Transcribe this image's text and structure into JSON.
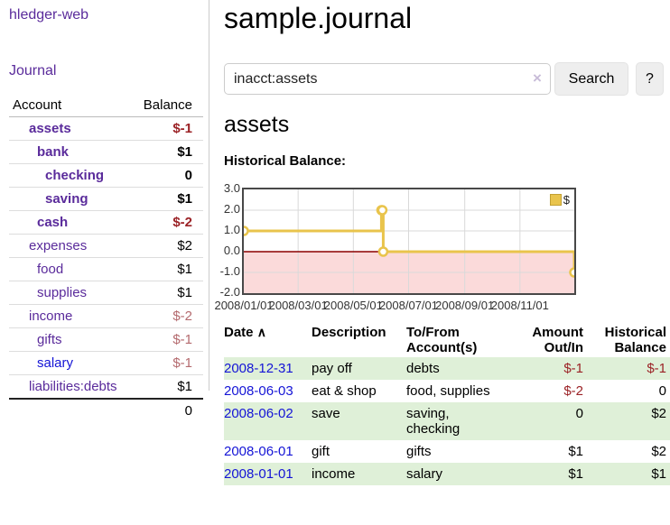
{
  "app": {
    "brand": "hledger-web"
  },
  "sidebar": {
    "journal_link": "Journal",
    "table": {
      "account_header": "Account",
      "balance_header": "Balance",
      "rows": [
        {
          "account": "assets",
          "balance": "$-1",
          "depth": 1,
          "bold": true,
          "neg": true,
          "unvisited": false
        },
        {
          "account": "bank",
          "balance": "$1",
          "depth": 2,
          "bold": true,
          "neg": false,
          "unvisited": false
        },
        {
          "account": "checking",
          "balance": "0",
          "depth": 3,
          "bold": true,
          "neg": false,
          "unvisited": false
        },
        {
          "account": "saving",
          "balance": "$1",
          "depth": 3,
          "bold": true,
          "neg": false,
          "unvisited": false
        },
        {
          "account": "cash",
          "balance": "$-2",
          "depth": 2,
          "bold": true,
          "neg": true,
          "unvisited": false
        },
        {
          "account": "expenses",
          "balance": "$2",
          "depth": 1,
          "bold": false,
          "neg": false,
          "unvisited": false
        },
        {
          "account": "food",
          "balance": "$1",
          "depth": 2,
          "bold": false,
          "neg": false,
          "unvisited": false
        },
        {
          "account": "supplies",
          "balance": "$1",
          "depth": 2,
          "bold": false,
          "neg": false,
          "unvisited": false
        },
        {
          "account": "income",
          "balance": "$-2",
          "depth": 1,
          "bold": false,
          "neg": true,
          "unvisited": false
        },
        {
          "account": "gifts",
          "balance": "$-1",
          "depth": 2,
          "bold": false,
          "neg": true,
          "unvisited": false
        },
        {
          "account": "salary",
          "balance": "$-1",
          "depth": 2,
          "bold": false,
          "neg": true,
          "unvisited": true
        },
        {
          "account": "liabilities:debts",
          "balance": "$1",
          "depth": 1,
          "bold": false,
          "neg": false,
          "unvisited": false
        }
      ],
      "total": "0"
    }
  },
  "main": {
    "title": "sample.journal",
    "search": {
      "value": "inacct:assets",
      "clear_icon": "×",
      "button_label": "Search",
      "help_label": "?"
    },
    "account_heading": "assets",
    "chart_label": "Historical Balance:"
  },
  "chart_data": {
    "type": "line",
    "title": "Historical Balance",
    "step": true,
    "legend": [
      {
        "label": "$",
        "color": "#e9c44c"
      }
    ],
    "legend_position": "top-right",
    "grid": true,
    "ylim": [
      -2.0,
      3.0
    ],
    "y_ticks": [
      "3.0",
      "2.0",
      "1.0",
      "0.0",
      "-1.0",
      "-2.0"
    ],
    "y_tick_values": [
      3,
      2,
      1,
      0,
      -1,
      -2
    ],
    "x_ticks": [
      {
        "label": "2008/01/01",
        "day": 0
      },
      {
        "label": "2008/03/01",
        "day": 60
      },
      {
        "label": "2008/05/01",
        "day": 121
      },
      {
        "label": "2008/07/01",
        "day": 182
      },
      {
        "label": "2008/09/01",
        "day": 244
      },
      {
        "label": "2008/11/01",
        "day": 305
      }
    ],
    "xlim_days": [
      0,
      365
    ],
    "series": [
      {
        "name": "$",
        "color": "#e9c44c",
        "points": [
          {
            "date": "2008-01-01",
            "day": 0,
            "value": 1
          },
          {
            "date": "2008-06-01",
            "day": 152,
            "value": 2
          },
          {
            "date": "2008-06-02",
            "day": 153,
            "value": 2
          },
          {
            "date": "2008-06-03",
            "day": 154,
            "value": 0
          },
          {
            "date": "2008-12-31",
            "day": 365,
            "value": -1
          }
        ]
      }
    ],
    "negative_region_color": "#fbdada",
    "zero_line_color": "#8b0000"
  },
  "register": {
    "headers": {
      "date": "Date",
      "sort_icon": "∧",
      "description": "Description",
      "accounts": "To/From Account(s)",
      "amount": "Amount Out/In",
      "balance": "Historical Balance"
    },
    "rows": [
      {
        "date": "2008-12-31",
        "description": "pay off",
        "accounts": "debts",
        "amount": "$-1",
        "balance": "$-1",
        "amount_neg": true,
        "balance_neg": true
      },
      {
        "date": "2008-06-03",
        "description": "eat & shop",
        "accounts": "food, supplies",
        "amount": "$-2",
        "balance": "0",
        "amount_neg": true,
        "balance_neg": false
      },
      {
        "date": "2008-06-02",
        "description": "save",
        "accounts": "saving, checking",
        "amount": "0",
        "balance": "$2",
        "amount_neg": false,
        "balance_neg": false
      },
      {
        "date": "2008-06-01",
        "description": "gift",
        "accounts": "gifts",
        "amount": "$1",
        "balance": "$2",
        "amount_neg": false,
        "balance_neg": false
      },
      {
        "date": "2008-01-01",
        "description": "income",
        "accounts": "salary",
        "amount": "$1",
        "balance": "$1",
        "amount_neg": false,
        "balance_neg": false
      }
    ]
  },
  "colors": {
    "link_purple": "#5a2b9b",
    "link_blue": "#1414d6",
    "negative_bold": "#9b2226",
    "negative_soft": "#b46a6e",
    "stripe_green": "#dff0d8",
    "line_gold": "#e9c44c",
    "pink_region": "#fbdada",
    "zero_line": "#8b0000",
    "chart_border": "#484848",
    "gridline": "#d9d9d9"
  }
}
